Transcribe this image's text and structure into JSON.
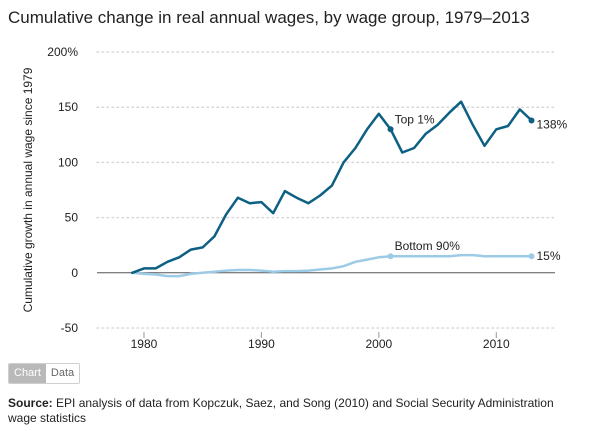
{
  "page": {
    "title": "Cumulative change in real annual wages, by wage group, 1979–2013",
    "tabs": [
      {
        "label": "Chart",
        "active": true
      },
      {
        "label": "Data",
        "active": false
      }
    ],
    "source_label": "Source:",
    "source_text": " EPI analysis of data from Kopczuk, Saez, and Song (2010) and Social Security Administration wage statistics"
  },
  "colors": {
    "top": "#0d5f83",
    "bottom": "#9dcbe6",
    "grid": "#d8d8d8",
    "zero": "#555555",
    "text": "#222222"
  },
  "chart_data": {
    "type": "line",
    "title": "Cumulative change in real annual wages, by wage group, 1979–2013",
    "xlabel": "",
    "ylabel": "Cumulative growth in annual wage since 1979",
    "xlim": [
      1976,
      2015
    ],
    "ylim": [
      -50,
      200
    ],
    "x_ticks": [
      1980,
      1990,
      2000,
      2010
    ],
    "y_ticks": [
      -50,
      0,
      50,
      100,
      150,
      200
    ],
    "y_tick_labels": [
      "-50",
      "0",
      "50",
      "100",
      "150",
      "200%"
    ],
    "grid": true,
    "x": [
      1979,
      1980,
      1981,
      1982,
      1983,
      1984,
      1985,
      1986,
      1987,
      1988,
      1989,
      1990,
      1991,
      1992,
      1993,
      1994,
      1995,
      1996,
      1997,
      1998,
      1999,
      2000,
      2001,
      2002,
      2003,
      2004,
      2005,
      2006,
      2007,
      2008,
      2009,
      2010,
      2011,
      2012,
      2013
    ],
    "series": [
      {
        "name": "Top 1%",
        "end_label": "138%",
        "values": [
          0,
          4,
          4,
          10,
          14,
          21,
          23,
          33,
          53,
          68,
          63,
          64,
          54,
          74,
          68,
          63,
          70,
          79,
          100,
          113,
          130,
          144,
          130,
          109,
          113,
          126,
          134,
          145,
          155,
          134,
          115,
          130,
          133,
          148,
          138
        ],
        "label_x": 2001
      },
      {
        "name": "Bottom 90%",
        "end_label": "15%",
        "values": [
          0,
          -1,
          -1.5,
          -3,
          -3,
          -1,
          0,
          1,
          2,
          2.5,
          2.5,
          2,
          1,
          1.5,
          1.5,
          2,
          3,
          4,
          6,
          10,
          12,
          14,
          15,
          15,
          15,
          15,
          15,
          15,
          16,
          16,
          15,
          15,
          15,
          15,
          15
        ],
        "label_x": 2001
      }
    ]
  }
}
